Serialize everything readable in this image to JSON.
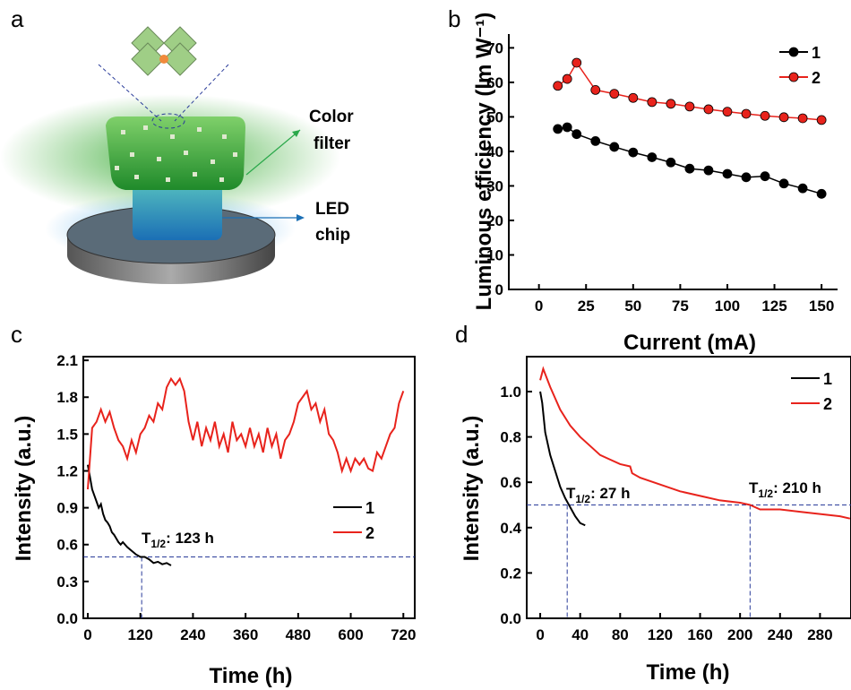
{
  "illustration": {
    "panel_label": "a",
    "color_filter": [
      "Color",
      "filter"
    ],
    "led_chip": [
      "LED",
      "chip"
    ]
  },
  "chart_data": [
    {
      "type": "line",
      "panel_label": "b",
      "xlabel": "Current (mA)",
      "ylabel": "Luminous efficiency (lm W⁻¹)",
      "markers": true,
      "legend": "upper right",
      "xlim": [
        -16,
        158.5
      ],
      "ylim": [
        0,
        74
      ],
      "xticks": [
        0,
        25,
        50,
        75,
        100,
        125,
        150
      ],
      "yticks": [
        0,
        10,
        20,
        30,
        40,
        50,
        60,
        70
      ],
      "series": [
        {
          "name": "1",
          "color": "#000000",
          "x": [
            10,
            15,
            20,
            30,
            40,
            50,
            60,
            70,
            80,
            90,
            100,
            110,
            120,
            130,
            140,
            150
          ],
          "values": [
            46.5,
            47,
            45,
            43,
            41.3,
            39.7,
            38.3,
            36.8,
            35,
            34.5,
            33.5,
            32.5,
            32.8,
            30.7,
            29.3,
            27.7
          ]
        },
        {
          "name": "2",
          "color": "#e8231c",
          "x": [
            10,
            15,
            20,
            30,
            40,
            50,
            60,
            70,
            80,
            90,
            100,
            110,
            120,
            130,
            140,
            150
          ],
          "values": [
            59,
            61,
            65.7,
            57.8,
            56.7,
            55.5,
            54.3,
            53.8,
            53,
            52.2,
            51.5,
            50.9,
            50.3,
            49.9,
            49.6,
            49.1
          ]
        }
      ]
    },
    {
      "type": "line",
      "panel_label": "c",
      "xlabel": "Time (h)",
      "ylabel": "Intensity (a.u.)",
      "markers": false,
      "legend": "center right",
      "xlim": [
        -10.2,
        746
      ],
      "ylim": [
        0,
        2.13
      ],
      "xticks": [
        0,
        120,
        240,
        360,
        480,
        600,
        720
      ],
      "yticks": [
        {
          "value": 0,
          "label": "0.0"
        },
        0.3,
        0.6,
        0.9,
        1.2,
        1.5,
        1.8,
        2.1
      ],
      "reference_lines": {
        "y": [
          0.5
        ],
        "x": [
          123
        ]
      },
      "annotations": [
        {
          "base": "T",
          "sub": "1/2",
          "text": ": 123 h"
        }
      ],
      "series": [
        {
          "name": "1",
          "color": "#000000",
          "x": [
            0,
            5,
            10,
            15,
            20,
            25,
            30,
            35,
            40,
            45,
            50,
            55,
            60,
            65,
            70,
            75,
            80,
            90,
            100,
            110,
            120,
            130,
            140,
            150,
            160,
            170,
            180,
            190
          ],
          "values": [
            1.25,
            1.15,
            1.05,
            1.0,
            0.95,
            0.9,
            0.93,
            0.85,
            0.8,
            0.78,
            0.75,
            0.7,
            0.68,
            0.65,
            0.62,
            0.6,
            0.62,
            0.58,
            0.55,
            0.52,
            0.5,
            0.5,
            0.48,
            0.45,
            0.46,
            0.44,
            0.45,
            0.43
          ]
        },
        {
          "name": "2",
          "color": "#e8231c",
          "x": [
            0,
            10,
            20,
            30,
            40,
            50,
            60,
            70,
            80,
            90,
            100,
            110,
            120,
            130,
            140,
            150,
            160,
            170,
            180,
            190,
            200,
            210,
            220,
            230,
            240,
            250,
            260,
            270,
            280,
            290,
            300,
            310,
            320,
            330,
            340,
            350,
            360,
            370,
            380,
            390,
            400,
            410,
            420,
            430,
            440,
            450,
            460,
            470,
            480,
            490,
            500,
            510,
            520,
            530,
            540,
            550,
            560,
            570,
            580,
            590,
            600,
            610,
            620,
            630,
            640,
            650,
            660,
            670,
            680,
            690,
            700,
            710,
            720
          ],
          "values": [
            1.05,
            1.55,
            1.6,
            1.7,
            1.6,
            1.68,
            1.55,
            1.45,
            1.4,
            1.3,
            1.45,
            1.35,
            1.5,
            1.55,
            1.65,
            1.6,
            1.75,
            1.7,
            1.88,
            1.95,
            1.9,
            1.95,
            1.85,
            1.6,
            1.45,
            1.6,
            1.4,
            1.55,
            1.45,
            1.6,
            1.4,
            1.5,
            1.35,
            1.6,
            1.45,
            1.5,
            1.4,
            1.55,
            1.4,
            1.5,
            1.35,
            1.55,
            1.4,
            1.5,
            1.3,
            1.45,
            1.5,
            1.6,
            1.75,
            1.8,
            1.85,
            1.7,
            1.75,
            1.6,
            1.7,
            1.5,
            1.45,
            1.35,
            1.2,
            1.3,
            1.2,
            1.3,
            1.25,
            1.3,
            1.22,
            1.2,
            1.35,
            1.3,
            1.4,
            1.5,
            1.55,
            1.75,
            1.85
          ]
        }
      ]
    },
    {
      "type": "line",
      "panel_label": "d",
      "xlabel": "Time (h)",
      "ylabel": "Intensity (a.u.)",
      "markers": false,
      "legend": "upper right",
      "xlim": [
        -13.5,
        311
      ],
      "ylim": [
        0,
        1.154
      ],
      "xticks": [
        0,
        40,
        80,
        120,
        160,
        200,
        240,
        280
      ],
      "yticks": [
        {
          "value": 0,
          "label": "0.0"
        },
        0.2,
        0.4,
        0.6,
        0.8,
        {
          "value": 1,
          "label": "1.0"
        }
      ],
      "reference_lines": {
        "y": [
          0.5
        ],
        "x": [
          27,
          210
        ]
      },
      "annotations": [
        {
          "base": "T",
          "sub": "1/2",
          "text": ": 27 h"
        },
        {
          "base": "T",
          "sub": "1/2",
          "text": ": 210 h"
        }
      ],
      "series": [
        {
          "name": "1",
          "color": "#000000",
          "x": [
            0,
            2,
            5,
            10,
            15,
            20,
            25,
            30,
            35,
            40,
            45
          ],
          "values": [
            1.0,
            0.95,
            0.82,
            0.72,
            0.65,
            0.58,
            0.53,
            0.49,
            0.45,
            0.42,
            0.41
          ]
        },
        {
          "name": "2",
          "color": "#e8231c",
          "x": [
            0,
            3,
            10,
            20,
            30,
            40,
            50,
            60,
            70,
            80,
            90,
            92,
            100,
            120,
            140,
            160,
            180,
            200,
            210,
            220,
            240,
            260,
            280,
            300,
            310
          ],
          "values": [
            1.05,
            1.1,
            1.02,
            0.92,
            0.85,
            0.8,
            0.76,
            0.72,
            0.7,
            0.68,
            0.67,
            0.64,
            0.62,
            0.59,
            0.56,
            0.54,
            0.52,
            0.51,
            0.5,
            0.48,
            0.48,
            0.47,
            0.46,
            0.45,
            0.44
          ]
        }
      ]
    }
  ]
}
